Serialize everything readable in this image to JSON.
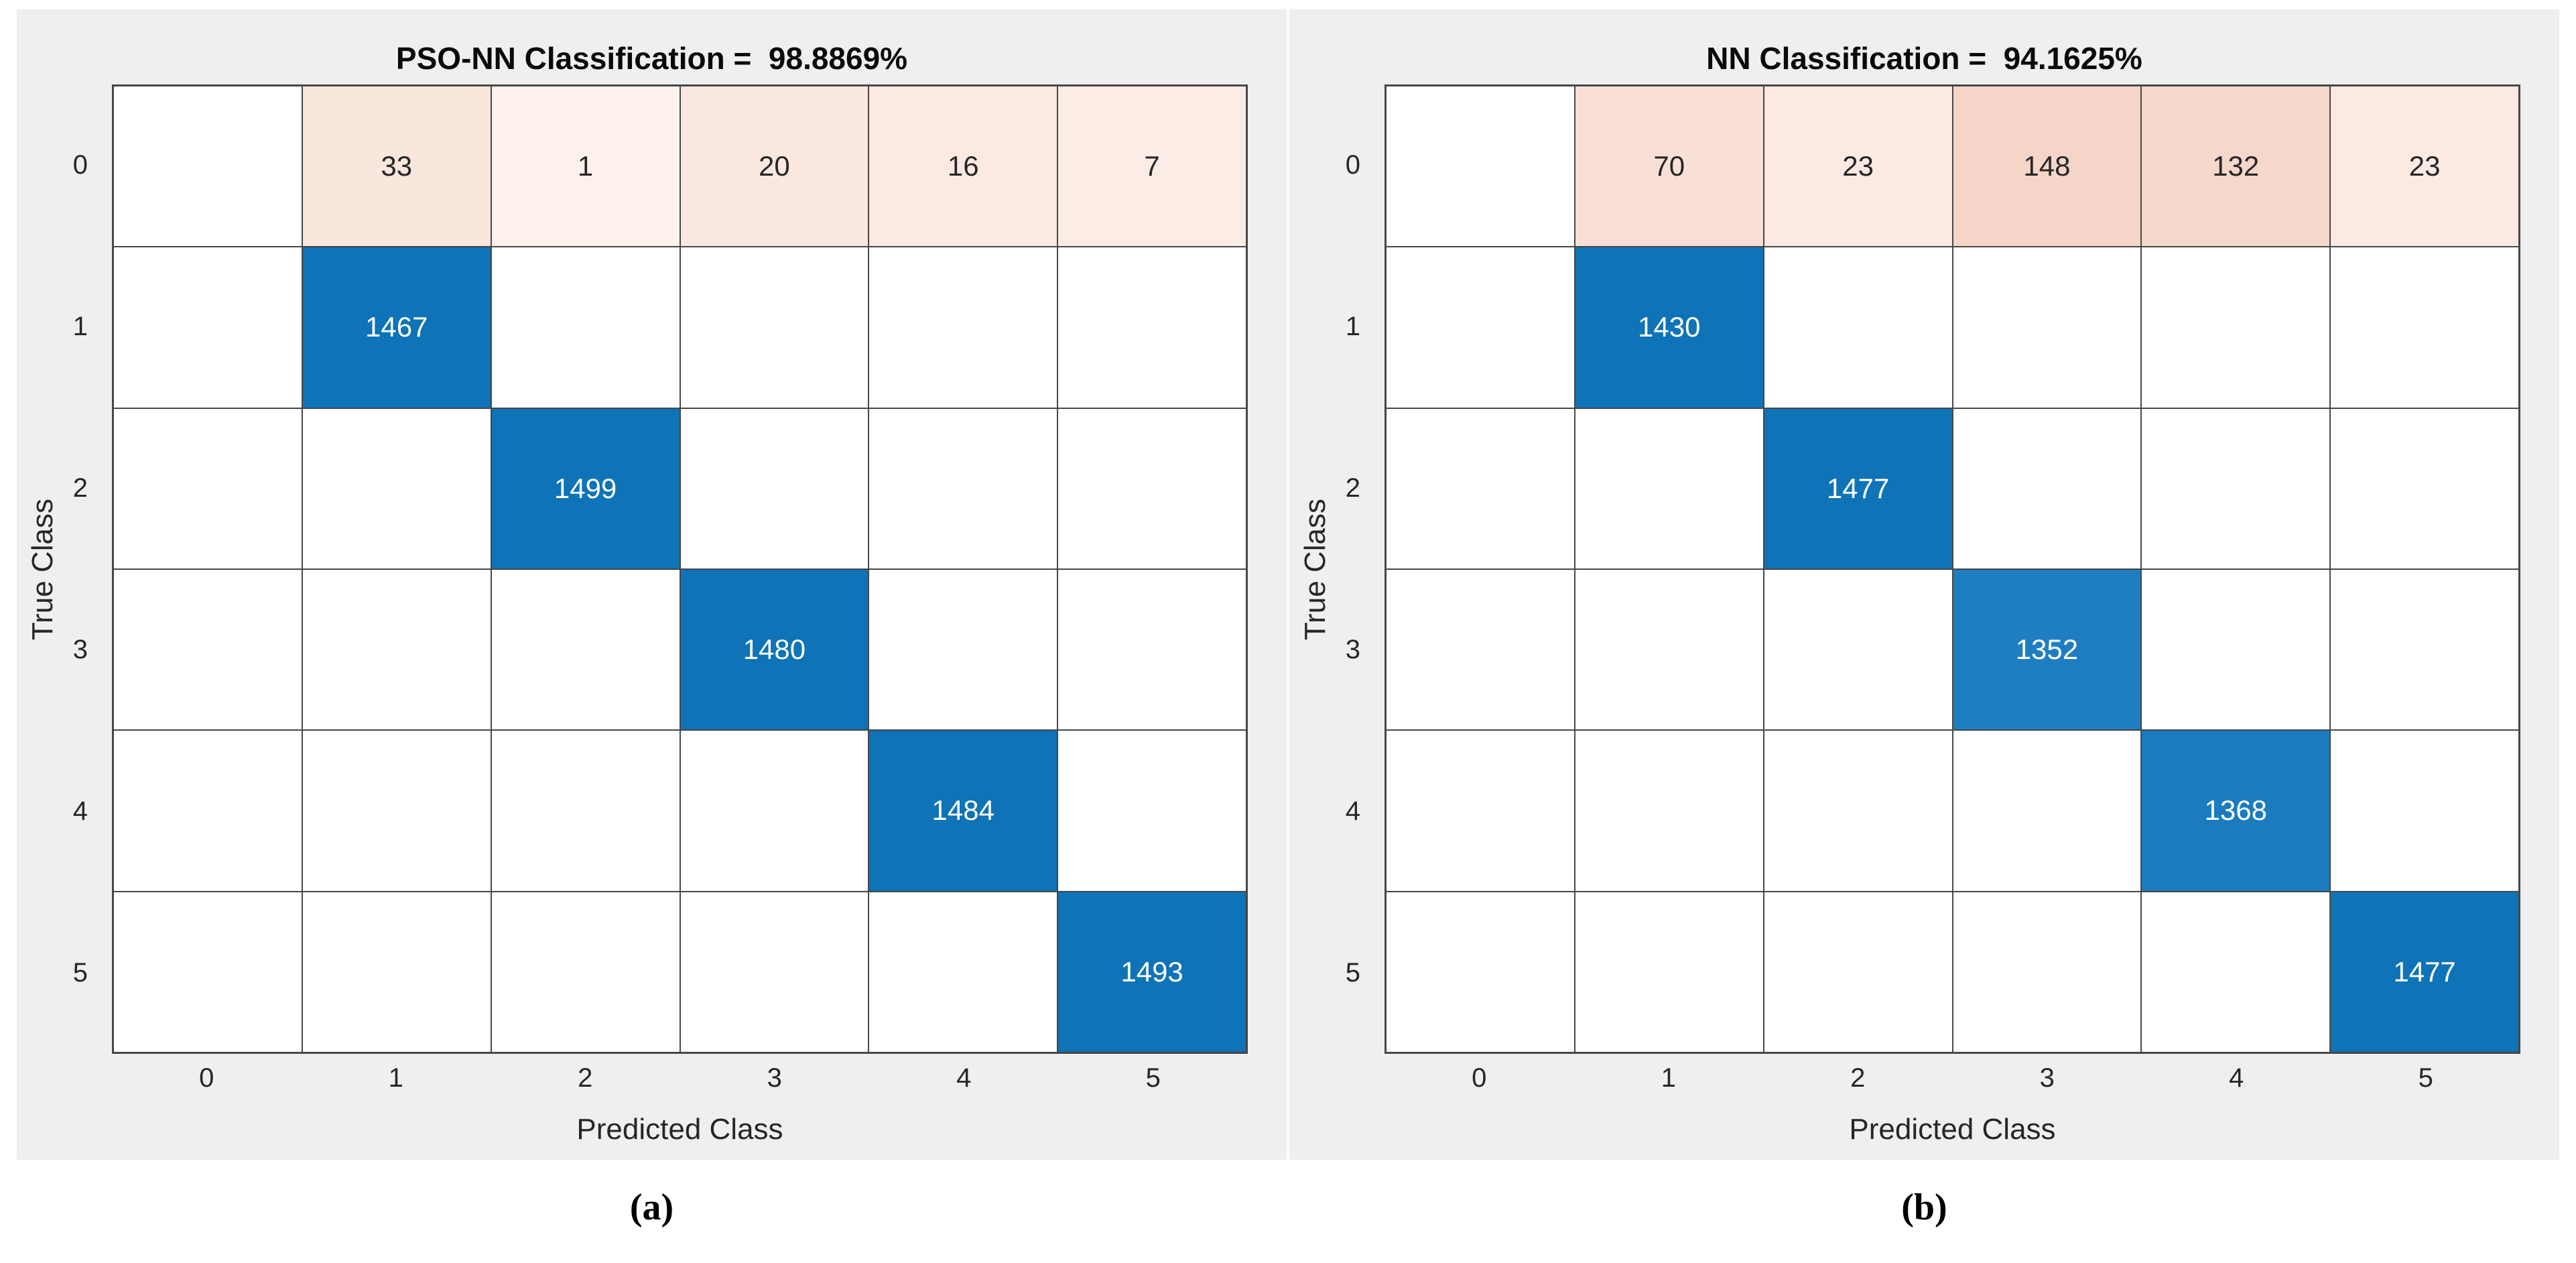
{
  "page": {
    "background": "#ffffff",
    "panel_bg": "#efefef",
    "grid_line_color": "#474747",
    "diag_blue": "#0e73b7",
    "diag_blue_light": "#1f7ec1"
  },
  "figure": {
    "panels": [
      {
        "caption": "(a)",
        "title": "PSO-NN Classification =  98.8869%",
        "xlabel": "Predicted Class",
        "ylabel": "True Class",
        "x_ticks": [
          "0",
          "1",
          "2",
          "3",
          "4",
          "5"
        ],
        "y_ticks": [
          "0",
          "1",
          "2",
          "3",
          "4",
          "5"
        ],
        "cells": [
          [
            {
              "v": "",
              "bg": "#ffffff",
              "fg": "#262626"
            },
            {
              "v": "33",
              "bg": "#f9e6dd",
              "fg": "#262626"
            },
            {
              "v": "1",
              "bg": "#fdf1ec",
              "fg": "#262626"
            },
            {
              "v": "20",
              "bg": "#fae8e0",
              "fg": "#262626"
            },
            {
              "v": "16",
              "bg": "#fbe9e2",
              "fg": "#262626"
            },
            {
              "v": "7",
              "bg": "#fcece6",
              "fg": "#262626"
            }
          ],
          [
            {
              "v": "",
              "bg": "#ffffff",
              "fg": "#262626"
            },
            {
              "v": "1467",
              "bg": "#0e73b7",
              "fg": "#ffffff"
            },
            {
              "v": "",
              "bg": "#ffffff",
              "fg": "#262626"
            },
            {
              "v": "",
              "bg": "#ffffff",
              "fg": "#262626"
            },
            {
              "v": "",
              "bg": "#ffffff",
              "fg": "#262626"
            },
            {
              "v": "",
              "bg": "#ffffff",
              "fg": "#262626"
            }
          ],
          [
            {
              "v": "",
              "bg": "#ffffff",
              "fg": "#262626"
            },
            {
              "v": "",
              "bg": "#ffffff",
              "fg": "#262626"
            },
            {
              "v": "1499",
              "bg": "#0e73b7",
              "fg": "#ffffff"
            },
            {
              "v": "",
              "bg": "#ffffff",
              "fg": "#262626"
            },
            {
              "v": "",
              "bg": "#ffffff",
              "fg": "#262626"
            },
            {
              "v": "",
              "bg": "#ffffff",
              "fg": "#262626"
            }
          ],
          [
            {
              "v": "",
              "bg": "#ffffff",
              "fg": "#262626"
            },
            {
              "v": "",
              "bg": "#ffffff",
              "fg": "#262626"
            },
            {
              "v": "",
              "bg": "#ffffff",
              "fg": "#262626"
            },
            {
              "v": "1480",
              "bg": "#0e73b7",
              "fg": "#ffffff"
            },
            {
              "v": "",
              "bg": "#ffffff",
              "fg": "#262626"
            },
            {
              "v": "",
              "bg": "#ffffff",
              "fg": "#262626"
            }
          ],
          [
            {
              "v": "",
              "bg": "#ffffff",
              "fg": "#262626"
            },
            {
              "v": "",
              "bg": "#ffffff",
              "fg": "#262626"
            },
            {
              "v": "",
              "bg": "#ffffff",
              "fg": "#262626"
            },
            {
              "v": "",
              "bg": "#ffffff",
              "fg": "#262626"
            },
            {
              "v": "1484",
              "bg": "#0e73b7",
              "fg": "#ffffff"
            },
            {
              "v": "",
              "bg": "#ffffff",
              "fg": "#262626"
            }
          ],
          [
            {
              "v": "",
              "bg": "#ffffff",
              "fg": "#262626"
            },
            {
              "v": "",
              "bg": "#ffffff",
              "fg": "#262626"
            },
            {
              "v": "",
              "bg": "#ffffff",
              "fg": "#262626"
            },
            {
              "v": "",
              "bg": "#ffffff",
              "fg": "#262626"
            },
            {
              "v": "",
              "bg": "#ffffff",
              "fg": "#262626"
            },
            {
              "v": "1493",
              "bg": "#0e73b7",
              "fg": "#ffffff"
            }
          ]
        ]
      },
      {
        "caption": "(b)",
        "title": "NN Classification =  94.1625%",
        "xlabel": "Predicted Class",
        "ylabel": "True Class",
        "x_ticks": [
          "0",
          "1",
          "2",
          "3",
          "4",
          "5"
        ],
        "y_ticks": [
          "0",
          "1",
          "2",
          "3",
          "4",
          "5"
        ],
        "cells": [
          [
            {
              "v": "",
              "bg": "#ffffff",
              "fg": "#262626"
            },
            {
              "v": "70",
              "bg": "#f8e0d6",
              "fg": "#262626"
            },
            {
              "v": "23",
              "bg": "#fbe9e2",
              "fg": "#262626"
            },
            {
              "v": "148",
              "bg": "#f4d5c8",
              "fg": "#262626"
            },
            {
              "v": "132",
              "bg": "#f5d7cb",
              "fg": "#262626"
            },
            {
              "v": "23",
              "bg": "#fbe9e2",
              "fg": "#262626"
            }
          ],
          [
            {
              "v": "",
              "bg": "#ffffff",
              "fg": "#262626"
            },
            {
              "v": "1430",
              "bg": "#0e73b7",
              "fg": "#ffffff"
            },
            {
              "v": "",
              "bg": "#ffffff",
              "fg": "#262626"
            },
            {
              "v": "",
              "bg": "#ffffff",
              "fg": "#262626"
            },
            {
              "v": "",
              "bg": "#ffffff",
              "fg": "#262626"
            },
            {
              "v": "",
              "bg": "#ffffff",
              "fg": "#262626"
            }
          ],
          [
            {
              "v": "",
              "bg": "#ffffff",
              "fg": "#262626"
            },
            {
              "v": "",
              "bg": "#ffffff",
              "fg": "#262626"
            },
            {
              "v": "1477",
              "bg": "#0e73b7",
              "fg": "#ffffff"
            },
            {
              "v": "",
              "bg": "#ffffff",
              "fg": "#262626"
            },
            {
              "v": "",
              "bg": "#ffffff",
              "fg": "#262626"
            },
            {
              "v": "",
              "bg": "#ffffff",
              "fg": "#262626"
            }
          ],
          [
            {
              "v": "",
              "bg": "#ffffff",
              "fg": "#262626"
            },
            {
              "v": "",
              "bg": "#ffffff",
              "fg": "#262626"
            },
            {
              "v": "",
              "bg": "#ffffff",
              "fg": "#262626"
            },
            {
              "v": "1352",
              "bg": "#1f7ec1",
              "fg": "#ffffff"
            },
            {
              "v": "",
              "bg": "#ffffff",
              "fg": "#262626"
            },
            {
              "v": "",
              "bg": "#ffffff",
              "fg": "#262626"
            }
          ],
          [
            {
              "v": "",
              "bg": "#ffffff",
              "fg": "#262626"
            },
            {
              "v": "",
              "bg": "#ffffff",
              "fg": "#262626"
            },
            {
              "v": "",
              "bg": "#ffffff",
              "fg": "#262626"
            },
            {
              "v": "",
              "bg": "#ffffff",
              "fg": "#262626"
            },
            {
              "v": "1368",
              "bg": "#1c7bbf",
              "fg": "#ffffff"
            },
            {
              "v": "",
              "bg": "#ffffff",
              "fg": "#262626"
            }
          ],
          [
            {
              "v": "",
              "bg": "#ffffff",
              "fg": "#262626"
            },
            {
              "v": "",
              "bg": "#ffffff",
              "fg": "#262626"
            },
            {
              "v": "",
              "bg": "#ffffff",
              "fg": "#262626"
            },
            {
              "v": "",
              "bg": "#ffffff",
              "fg": "#262626"
            },
            {
              "v": "",
              "bg": "#ffffff",
              "fg": "#262626"
            },
            {
              "v": "1477",
              "bg": "#0e73b7",
              "fg": "#ffffff"
            }
          ]
        ]
      }
    ]
  },
  "chart_data": [
    {
      "type": "heatmap",
      "subtype": "confusion-matrix",
      "title": "PSO-NN Classification =  98.8869%",
      "accuracy_percent": 98.8869,
      "xlabel": "Predicted Class",
      "ylabel": "True Class",
      "x_categories": [
        "0",
        "1",
        "2",
        "3",
        "4",
        "5"
      ],
      "y_categories": [
        "0",
        "1",
        "2",
        "3",
        "4",
        "5"
      ],
      "matrix": [
        [
          0,
          33,
          1,
          20,
          16,
          7
        ],
        [
          0,
          1467,
          0,
          0,
          0,
          0
        ],
        [
          0,
          0,
          1499,
          0,
          0,
          0
        ],
        [
          0,
          0,
          0,
          1480,
          0,
          0
        ],
        [
          0,
          0,
          0,
          0,
          1484,
          0
        ],
        [
          0,
          0,
          0,
          0,
          0,
          1493
        ]
      ],
      "legend": "none",
      "grid": true
    },
    {
      "type": "heatmap",
      "subtype": "confusion-matrix",
      "title": "NN Classification =  94.1625%",
      "accuracy_percent": 94.1625,
      "xlabel": "Predicted Class",
      "ylabel": "True Class",
      "x_categories": [
        "0",
        "1",
        "2",
        "3",
        "4",
        "5"
      ],
      "y_categories": [
        "0",
        "1",
        "2",
        "3",
        "4",
        "5"
      ],
      "matrix": [
        [
          0,
          70,
          23,
          148,
          132,
          23
        ],
        [
          0,
          1430,
          0,
          0,
          0,
          0
        ],
        [
          0,
          0,
          1477,
          0,
          0,
          0
        ],
        [
          0,
          0,
          0,
          1352,
          0,
          0
        ],
        [
          0,
          0,
          0,
          0,
          1368,
          0
        ],
        [
          0,
          0,
          0,
          0,
          0,
          1477
        ]
      ],
      "legend": "none",
      "grid": true
    }
  ]
}
